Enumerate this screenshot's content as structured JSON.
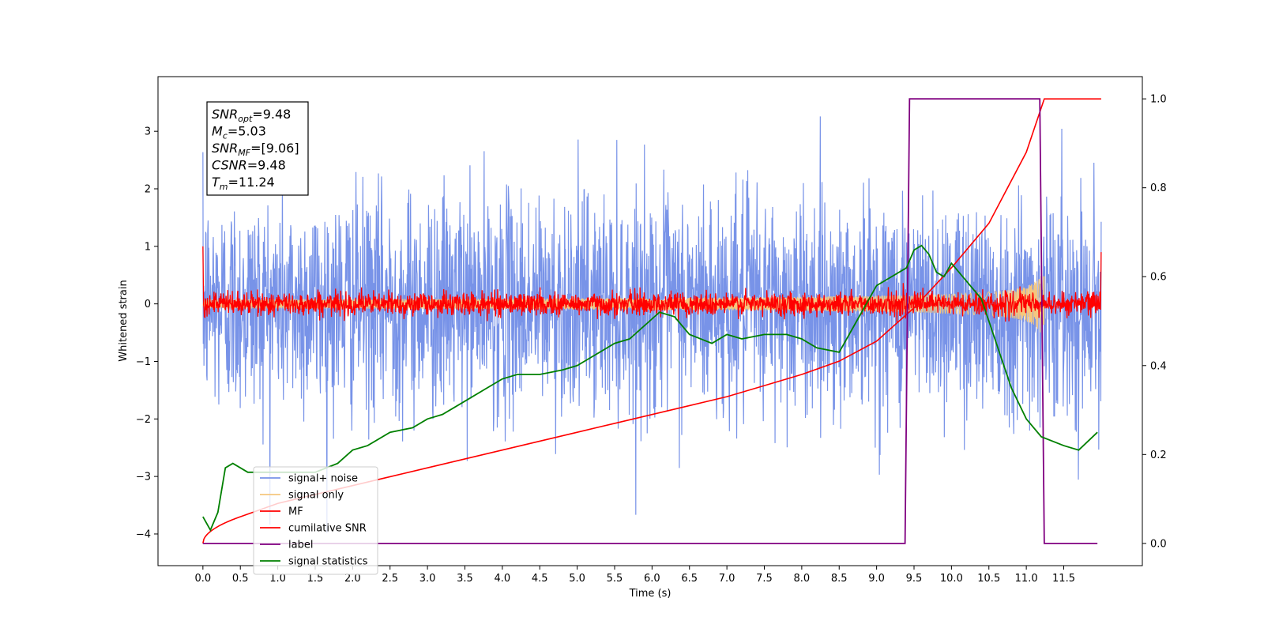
{
  "chart_data": {
    "type": "line",
    "title": "",
    "xlabel": "Time (s)",
    "ylabel": "Whitened strain",
    "xlim": [
      -0.6,
      12.55
    ],
    "ylim_left": [
      -4.55,
      3.95
    ],
    "ylim_right": [
      -0.05,
      1.05
    ],
    "x_ticks": [
      0.0,
      0.5,
      1.0,
      1.5,
      2.0,
      2.5,
      3.0,
      3.5,
      4.0,
      4.5,
      5.0,
      5.5,
      6.0,
      6.5,
      7.0,
      7.5,
      8.0,
      8.5,
      9.0,
      9.5,
      10.0,
      10.5,
      11.0,
      11.5
    ],
    "x_tick_labels": [
      "0.0",
      "0.5",
      "1.0",
      "1.5",
      "2.0",
      "2.5",
      "3.0",
      "3.5",
      "4.0",
      "4.5",
      "5.0",
      "5.5",
      "6.0",
      "6.5",
      "7.0",
      "7.5",
      "8.0",
      "8.5",
      "9.0",
      "9.5",
      "10.0",
      "10.5",
      "11.0",
      "11.5"
    ],
    "y_left_ticks": [
      3,
      2,
      1,
      0,
      -1,
      -2,
      -3,
      -4
    ],
    "y_left_tick_labels": [
      "3",
      "2",
      "1",
      "0",
      "−1",
      "−2",
      "−3",
      "−4"
    ],
    "y_right_ticks": [
      1.0,
      0.8,
      0.6,
      0.4,
      0.2,
      0.0
    ],
    "y_right_tick_labels": [
      "1.0",
      "0.8",
      "0.6",
      "0.4",
      "0.2",
      "0.0"
    ],
    "grid": false,
    "legend_placement": "lower-left",
    "annotation": [
      {
        "main": "SNR",
        "sub": "opt",
        "value": "=9.48"
      },
      {
        "main": "M",
        "sub": "c",
        "value": "=5.03"
      },
      {
        "main": "SNR",
        "sub": "MF",
        "value": "=[9.06]"
      },
      {
        "main": "CSNR",
        "sub": "",
        "value": "=9.48"
      },
      {
        "main": "T",
        "sub": "m",
        "value": "=11.24"
      }
    ],
    "series": [
      {
        "name": "signal+ noise",
        "color": "#7893e8",
        "axis": "left",
        "kind": "noise",
        "amplitude": 0.95,
        "x_start": 0.0,
        "x_end": 12.0
      },
      {
        "name": "signal only",
        "color": "#f5c77e",
        "axis": "left",
        "kind": "chirp",
        "merge_time": 11.24,
        "x_start": 0.0,
        "x_end": 11.24
      },
      {
        "name": "MF",
        "color": "#ff0000",
        "axis": "left",
        "kind": "noise",
        "amplitude": 0.1,
        "x_start": 0.0,
        "x_end": 12.0
      },
      {
        "name": "cumilative SNR",
        "color": "#ff0000",
        "axis": "right",
        "x": [
          0.0,
          0.5,
          1.0,
          1.5,
          2.0,
          2.5,
          3.0,
          3.5,
          4.0,
          4.5,
          5.0,
          5.5,
          6.0,
          6.5,
          7.0,
          7.5,
          8.0,
          8.5,
          9.0,
          9.5,
          10.0,
          10.5,
          11.0,
          11.24,
          12.0
        ],
        "y": [
          0.0,
          0.06,
          0.09,
          0.11,
          0.13,
          0.15,
          0.17,
          0.19,
          0.21,
          0.23,
          0.25,
          0.27,
          0.29,
          0.31,
          0.33,
          0.355,
          0.38,
          0.41,
          0.455,
          0.53,
          0.62,
          0.72,
          0.88,
          1.0,
          1.0
        ]
      },
      {
        "name": "label",
        "color": "#800080",
        "axis": "right",
        "x": [
          0.0,
          9.38,
          9.44,
          11.18,
          11.24,
          11.95
        ],
        "y": [
          0.0,
          0.0,
          1.0,
          1.0,
          0.0,
          0.0
        ]
      },
      {
        "name": "signal statistics",
        "color": "#008000",
        "axis": "right",
        "x": [
          0.0,
          0.1,
          0.2,
          0.3,
          0.4,
          0.5,
          0.6,
          0.8,
          1.0,
          1.2,
          1.5,
          1.8,
          2.0,
          2.2,
          2.5,
          2.8,
          3.0,
          3.2,
          3.5,
          3.8,
          4.0,
          4.2,
          4.5,
          4.8,
          5.0,
          5.2,
          5.5,
          5.7,
          5.9,
          6.1,
          6.3,
          6.5,
          6.8,
          7.0,
          7.2,
          7.5,
          7.8,
          8.0,
          8.2,
          8.5,
          8.8,
          9.0,
          9.2,
          9.4,
          9.5,
          9.6,
          9.7,
          9.8,
          9.9,
          10.0,
          10.2,
          10.4,
          10.6,
          10.8,
          11.0,
          11.2,
          11.5,
          11.7,
          11.95
        ],
        "y": [
          0.06,
          0.03,
          0.07,
          0.17,
          0.18,
          0.17,
          0.16,
          0.16,
          0.16,
          0.16,
          0.16,
          0.18,
          0.21,
          0.22,
          0.25,
          0.26,
          0.28,
          0.29,
          0.32,
          0.35,
          0.37,
          0.38,
          0.38,
          0.39,
          0.4,
          0.42,
          0.45,
          0.46,
          0.49,
          0.52,
          0.51,
          0.47,
          0.45,
          0.47,
          0.46,
          0.47,
          0.47,
          0.46,
          0.44,
          0.43,
          0.52,
          0.58,
          0.6,
          0.62,
          0.66,
          0.67,
          0.65,
          0.61,
          0.6,
          0.63,
          0.59,
          0.55,
          0.45,
          0.35,
          0.28,
          0.24,
          0.22,
          0.21,
          0.25
        ]
      }
    ]
  }
}
